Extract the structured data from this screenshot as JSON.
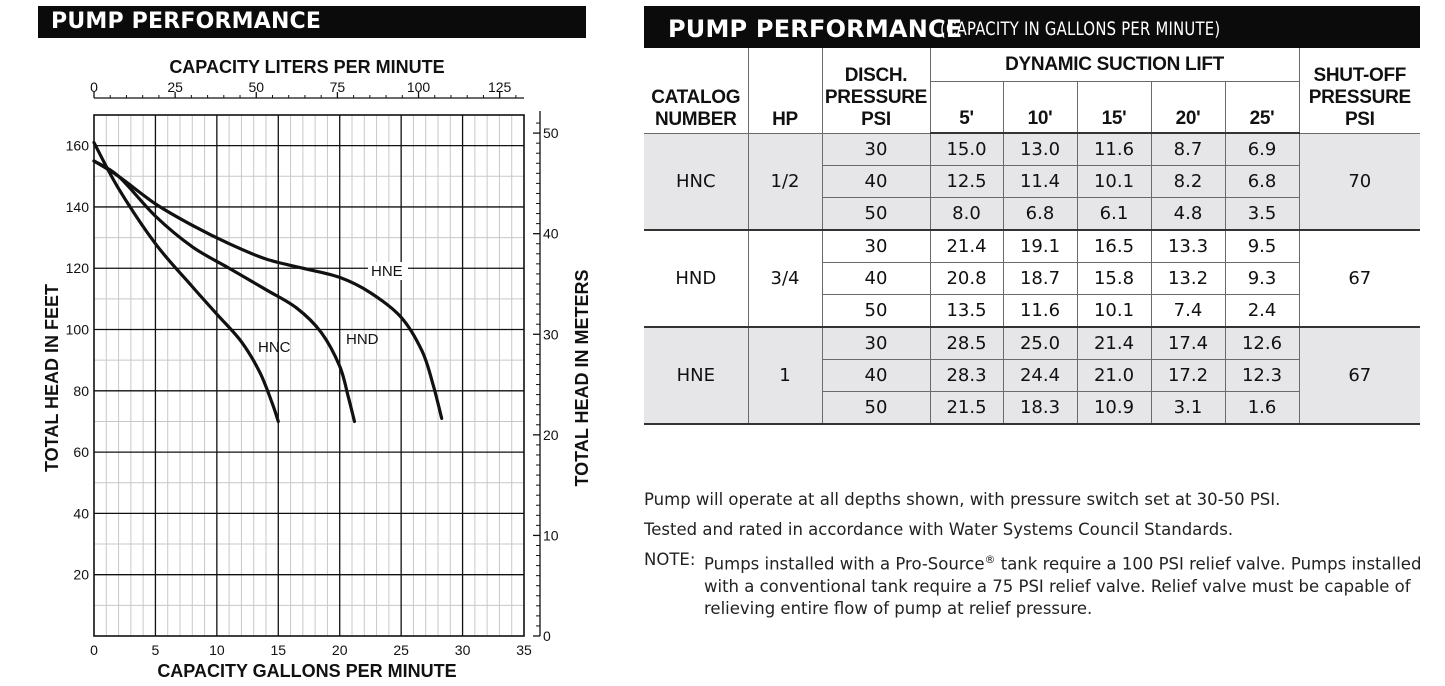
{
  "left_title": "PUMP PERFORMANCE",
  "right_title": "PUMP PERFORMANCE",
  "right_subtitle": "(CAPACITY IN GALLONS PER MINUTE)",
  "chart_data": {
    "type": "line",
    "title": "PUMP PERFORMANCE",
    "xlabel": "CAPACITY GALLONS PER MINUTE",
    "ylabel": "TOTAL HEAD IN FEET",
    "x2label": "CAPACITY LITERS PER MINUTE",
    "y2label": "TOTAL HEAD IN METERS",
    "xlim": [
      0,
      35
    ],
    "ylim": [
      0,
      170
    ],
    "x2lim": [
      0,
      132.5
    ],
    "y2lim": [
      0,
      51.8
    ],
    "x_ticks": [
      0,
      5,
      10,
      15,
      20,
      25,
      30,
      35
    ],
    "y_ticks": [
      20,
      40,
      60,
      80,
      100,
      120,
      140,
      160
    ],
    "x2_ticks": [
      0,
      25,
      50,
      75,
      100,
      125
    ],
    "y2_ticks": [
      0,
      10,
      20,
      30,
      40,
      50
    ],
    "grid": true,
    "series": [
      {
        "name": "HNC",
        "x": [
          0,
          2,
          5,
          8,
          10,
          12,
          13.5,
          14.5,
          15
        ],
        "y": [
          161,
          146,
          128,
          114,
          105,
          96,
          86,
          76,
          70
        ]
      },
      {
        "name": "HND",
        "x": [
          0,
          2,
          5,
          8,
          11,
          14,
          16.5,
          18.5,
          20,
          20.7,
          21.2
        ],
        "y": [
          155,
          150,
          137,
          127,
          120,
          113,
          107,
          99,
          88,
          78,
          70
        ]
      },
      {
        "name": "HNE",
        "x": [
          0,
          2,
          5,
          8,
          11,
          14,
          17,
          20,
          22.5,
          25,
          26.7,
          27.6,
          28.3
        ],
        "y": [
          155,
          150,
          141,
          134,
          128,
          123,
          120,
          117,
          112,
          104,
          93,
          82,
          71
        ]
      }
    ]
  },
  "table": {
    "head": {
      "catalog_number": "CATALOG NUMBER",
      "hp": "HP",
      "disch_line1": "DISCH.",
      "disch_line2": "PRESSURE",
      "disch_line3": "PSI",
      "dynamic_suction_lift": "DYNAMIC SUCTION LIFT",
      "lifts": [
        "5'",
        "10'",
        "15'",
        "20'",
        "25'"
      ],
      "shutoff_line1": "SHUT-OFF",
      "shutoff_line2": "PRESSURE",
      "shutoff_line3": "PSI"
    },
    "groups": [
      {
        "catalog": "HNC",
        "hp": "1/2",
        "shutoff": "70",
        "rows": [
          {
            "psi": "30",
            "values": [
              "15.0",
              "13.0",
              "11.6",
              "8.7",
              "6.9"
            ]
          },
          {
            "psi": "40",
            "values": [
              "12.5",
              "11.4",
              "10.1",
              "8.2",
              "6.8"
            ]
          },
          {
            "psi": "50",
            "values": [
              "8.0",
              "6.8",
              "6.1",
              "4.8",
              "3.5"
            ]
          }
        ]
      },
      {
        "catalog": "HND",
        "hp": "3/4",
        "shutoff": "67",
        "rows": [
          {
            "psi": "30",
            "values": [
              "21.4",
              "19.1",
              "16.5",
              "13.3",
              "9.5"
            ]
          },
          {
            "psi": "40",
            "values": [
              "20.8",
              "18.7",
              "15.8",
              "13.2",
              "9.3"
            ]
          },
          {
            "psi": "50",
            "values": [
              "13.5",
              "11.6",
              "10.1",
              "7.4",
              "2.4"
            ]
          }
        ]
      },
      {
        "catalog": "HNE",
        "hp": "1",
        "shutoff": "67",
        "rows": [
          {
            "psi": "30",
            "values": [
              "28.5",
              "25.0",
              "21.4",
              "17.4",
              "12.6"
            ]
          },
          {
            "psi": "40",
            "values": [
              "28.3",
              "24.4",
              "21.0",
              "17.2",
              "12.3"
            ]
          },
          {
            "psi": "50",
            "values": [
              "21.5",
              "18.3",
              "10.9",
              "3.1",
              "1.6"
            ]
          }
        ]
      }
    ]
  },
  "notes": {
    "line1": "Pump will operate at all depths shown, with pressure switch set at 30-50 PSI.",
    "line2": "Tested and rated in accordance with Water Systems Council Standards.",
    "note_label": "NOTE:",
    "note_text_part1": "Pumps installed with a Pro-Source",
    "note_registered": "®",
    "note_text_part2": " tank require a 100 PSI relief valve. Pumps installed with a conventional tank require a 75 PSI relief valve. Relief valve must be capable of relieving entire flow of pump at relief pressure."
  }
}
